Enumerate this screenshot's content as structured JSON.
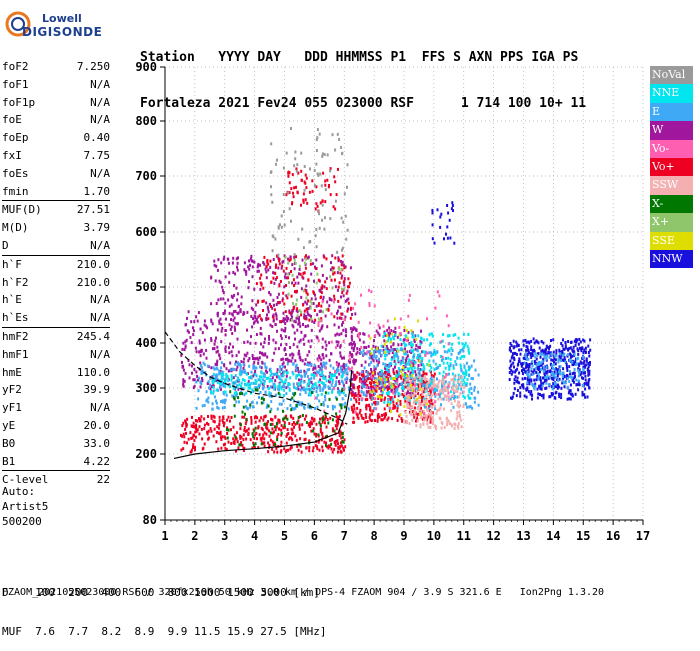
{
  "logo": {
    "line1": "Lowell",
    "line2": "DIGISONDE"
  },
  "header": {
    "line1": "Station   YYYY DAY   DDD HHMMSS P1  FFS S AXN PPS IGA PS",
    "line2": "Fortaleza 2021 Fev24 055 023000 RSF      1 714 100 10+ 11"
  },
  "params": {
    "group1": [
      {
        "label": "foF2",
        "value": "7.250"
      },
      {
        "label": "foF1",
        "value": "N/A"
      },
      {
        "label": "foF1p",
        "value": "N/A"
      },
      {
        "label": "foE",
        "value": "N/A"
      },
      {
        "label": "foEp",
        "value": "0.40"
      },
      {
        "label": "fxI",
        "value": "7.75"
      },
      {
        "label": "foEs",
        "value": "N/A"
      },
      {
        "label": "fmin",
        "value": "1.70"
      }
    ],
    "group2": [
      {
        "label": "MUF(D)",
        "value": "27.51"
      },
      {
        "label": "M(D)",
        "value": "3.79"
      },
      {
        "label": "D",
        "value": "N/A"
      }
    ],
    "group3": [
      {
        "label": "h`F",
        "value": "210.0"
      },
      {
        "label": "h`F2",
        "value": "210.0"
      },
      {
        "label": "h`E",
        "value": "N/A"
      },
      {
        "label": "h`Es",
        "value": "N/A"
      }
    ],
    "group4": [
      {
        "label": "hmF2",
        "value": "245.4"
      },
      {
        "label": "hmF1",
        "value": "N/A"
      },
      {
        "label": "hmE",
        "value": "110.0"
      },
      {
        "label": "yF2",
        "value": "39.9"
      },
      {
        "label": "yF1",
        "value": "N/A"
      },
      {
        "label": "yE",
        "value": "20.0"
      },
      {
        "label": "B0",
        "value": "33.0"
      },
      {
        "label": "B1",
        "value": "4.22"
      }
    ],
    "group5": [
      {
        "label": "C-level",
        "value": "22"
      }
    ]
  },
  "auto": {
    "line1": "Auto:",
    "line2": "Artist5",
    "line3": "500200"
  },
  "legend": [
    {
      "label": "NoVal",
      "color": "#9a9a9a"
    },
    {
      "label": "NNE",
      "color": "#00e5ee"
    },
    {
      "label": "E",
      "color": "#3fa9f5"
    },
    {
      "label": "W",
      "color": "#a0169c"
    },
    {
      "label": "Vo-",
      "color": "#ff5fb0"
    },
    {
      "label": "Vo+",
      "color": "#ee0022"
    },
    {
      "label": "SSW",
      "color": "#f4b0b0"
    },
    {
      "label": "X-",
      "color": "#007700"
    },
    {
      "label": "X+",
      "color": "#8fc56b"
    },
    {
      "label": "SSE",
      "color": "#dddd00"
    },
    {
      "label": "NNW",
      "color": "#1a10dd"
    }
  ],
  "dmuf": {
    "dline": "D    100  200  400  600  800 1000 1500 3000 [km]",
    "mufline": "MUF  7.6  7.7  8.2  8.9  9.9 11.5 15.9 27.5 [MHz]"
  },
  "footer": "FZAOM_2021055023000.RSF / 320fx256h 50 kHz 5.0 km / DPS-4 FZAOM 904 / 3.9 S 321.6 E   Ion2Png 1.3.20",
  "chart_data": {
    "type": "scatter",
    "x": {
      "min": 1,
      "max": 17,
      "ticks": [
        "1",
        "2",
        "3",
        "4",
        "5",
        "6",
        "7",
        "8",
        "9",
        "10",
        "11",
        "12",
        "13",
        "14",
        "15",
        "16",
        "17"
      ]
    },
    "y": {
      "min": 80,
      "max": 900,
      "ticks": [
        "80",
        "200",
        "300",
        "400",
        "500",
        "600",
        "700",
        "800",
        "900"
      ]
    },
    "clusters": [
      {
        "color": "#a0169c",
        "fmin": 1.5,
        "fmax": 7.4,
        "hmin": 300,
        "hmax": 460,
        "n": 520
      },
      {
        "color": "#3fa9f5",
        "fmin": 2.0,
        "fmax": 7.2,
        "hmin": 270,
        "hmax": 360,
        "n": 360
      },
      {
        "color": "#00e5ee",
        "fmin": 2.5,
        "fmax": 7.0,
        "hmin": 290,
        "hmax": 340,
        "n": 160
      },
      {
        "color": "#ee0022",
        "fmin": 1.5,
        "fmax": 7.0,
        "hmin": 205,
        "hmax": 260,
        "n": 420
      },
      {
        "color": "#a0169c",
        "fmin": 2.5,
        "fmax": 7.2,
        "hmin": 440,
        "hmax": 560,
        "n": 260
      },
      {
        "color": "#ee0022",
        "fmin": 4.0,
        "fmax": 7.2,
        "hmin": 440,
        "hmax": 560,
        "n": 140
      },
      {
        "color": "#ee0022",
        "fmin": 5.0,
        "fmax": 6.8,
        "hmin": 640,
        "hmax": 720,
        "n": 60
      },
      {
        "color": "#9a9a9a",
        "fmin": 4.5,
        "fmax": 7.1,
        "hmin": 560,
        "hmax": 790,
        "n": 90
      },
      {
        "color": "#ee0022",
        "fmin": 7.2,
        "fmax": 10.0,
        "hmin": 250,
        "hmax": 340,
        "n": 380
      },
      {
        "color": "#a0169c",
        "fmin": 7.2,
        "fmax": 9.6,
        "hmin": 290,
        "hmax": 430,
        "n": 260
      },
      {
        "color": "#00e5ee",
        "fmin": 8.2,
        "fmax": 11.2,
        "hmin": 280,
        "hmax": 420,
        "n": 280
      },
      {
        "color": "#3fa9f5",
        "fmin": 7.5,
        "fmax": 11.5,
        "hmin": 270,
        "hmax": 390,
        "n": 220
      },
      {
        "color": "#f4b0b0",
        "fmin": 9.0,
        "fmax": 11.0,
        "hmin": 240,
        "hmax": 330,
        "n": 240
      },
      {
        "color": "#dddd00",
        "fmin": 7.8,
        "fmax": 9.8,
        "hmin": 260,
        "hmax": 450,
        "n": 60
      },
      {
        "color": "#1a10dd",
        "fmin": 12.5,
        "fmax": 15.2,
        "hmin": 285,
        "hmax": 410,
        "n": 520
      },
      {
        "color": "#3fa9f5",
        "fmin": 13.0,
        "fmax": 15.0,
        "hmin": 300,
        "hmax": 380,
        "n": 120
      },
      {
        "color": "#1a10dd",
        "fmin": 9.9,
        "fmax": 10.7,
        "hmin": 580,
        "hmax": 660,
        "n": 22
      },
      {
        "color": "#007700",
        "fmin": 3.0,
        "fmax": 7.0,
        "hmin": 215,
        "hmax": 300,
        "n": 90
      },
      {
        "color": "#8fc56b",
        "fmin": 5.0,
        "fmax": 7.0,
        "hmin": 440,
        "hmax": 560,
        "n": 40
      },
      {
        "color": "#ff5fb0",
        "fmin": 6.0,
        "fmax": 10.5,
        "hmin": 260,
        "hmax": 500,
        "n": 90
      }
    ],
    "lines": [
      {
        "name": "",
        "style": "solid",
        "points": [
          [
            1.3,
            192
          ],
          [
            2,
            200
          ],
          [
            3,
            205
          ],
          [
            4,
            208
          ],
          [
            5,
            212
          ],
          [
            6,
            218
          ],
          [
            6.8,
            232
          ],
          [
            7.05,
            262
          ],
          [
            7.2,
            300
          ],
          [
            7.25,
            340
          ]
        ]
      },
      {
        "name": "",
        "style": "dashed",
        "points": [
          [
            1,
            420
          ],
          [
            1.5,
            380
          ],
          [
            2,
            350
          ],
          [
            2.5,
            325
          ],
          [
            3,
            310
          ],
          [
            4,
            292
          ],
          [
            5,
            285
          ],
          [
            6,
            270
          ],
          [
            6.8,
            254
          ],
          [
            7.1,
            245
          ]
        ]
      }
    ]
  }
}
